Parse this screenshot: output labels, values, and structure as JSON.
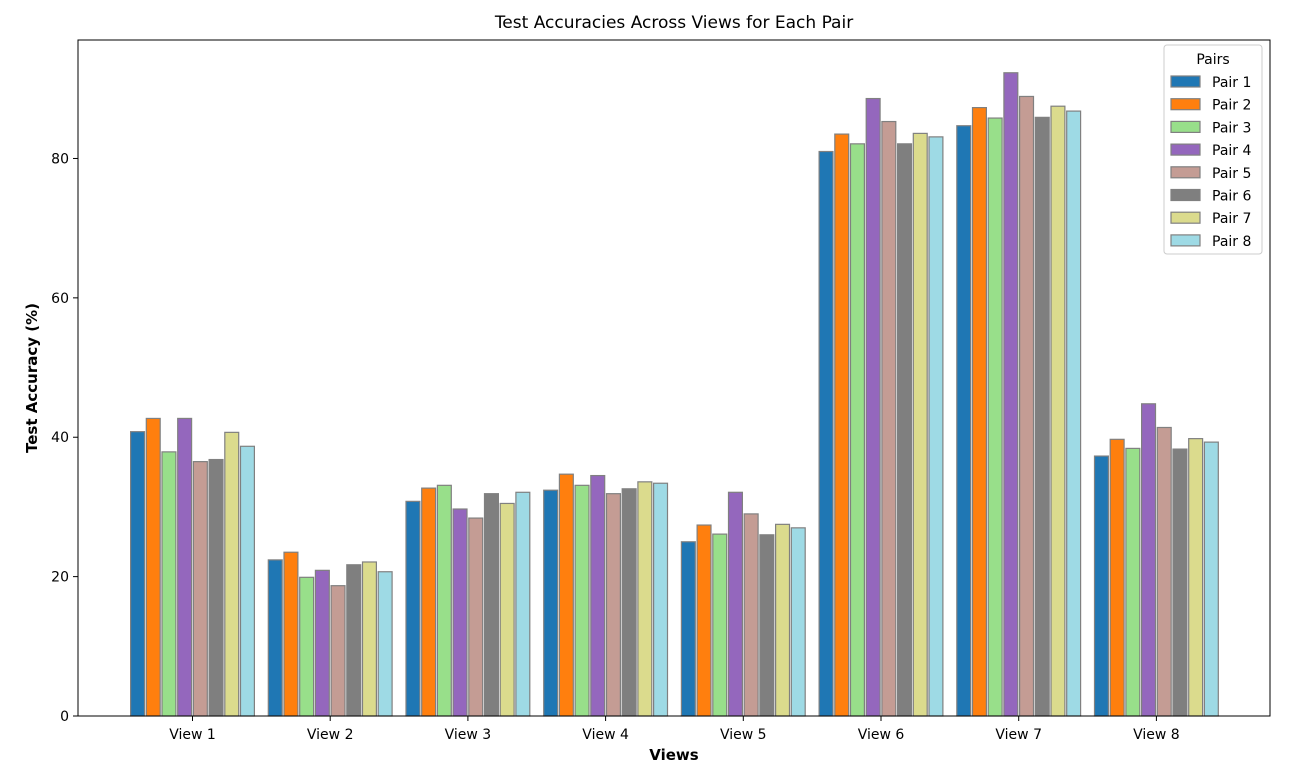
{
  "chart_data": {
    "type": "bar",
    "title": "Test Accuracies Across Views for Each Pair",
    "xlabel": "Views",
    "ylabel": "Test Accuracy (%)",
    "ylim": [
      0,
      97
    ],
    "yticks": [
      0,
      20,
      40,
      60,
      80
    ],
    "grid": false,
    "legend": {
      "title": "Pairs",
      "placement": "top-right"
    },
    "categories": [
      "View 1",
      "View 2",
      "View 3",
      "View 4",
      "View 5",
      "View 6",
      "View 7",
      "View 8"
    ],
    "series": [
      {
        "name": "Pair 1",
        "color": "#1f77b4",
        "values": [
          40.8,
          22.4,
          30.8,
          32.4,
          25.0,
          81.0,
          84.7,
          37.3
        ]
      },
      {
        "name": "Pair 2",
        "color": "#ff7f0e",
        "values": [
          42.7,
          23.5,
          32.7,
          34.7,
          27.4,
          83.5,
          87.3,
          39.7
        ]
      },
      {
        "name": "Pair 3",
        "color": "#98df8a",
        "values": [
          37.9,
          19.9,
          33.1,
          33.1,
          26.1,
          82.1,
          85.8,
          38.4
        ]
      },
      {
        "name": "Pair 4",
        "color": "#9467bd",
        "values": [
          42.7,
          20.9,
          29.7,
          34.5,
          32.1,
          88.6,
          92.3,
          44.8
        ]
      },
      {
        "name": "Pair 5",
        "color": "#c49c94",
        "values": [
          36.5,
          18.7,
          28.4,
          31.9,
          29.0,
          85.3,
          88.9,
          41.4
        ]
      },
      {
        "name": "Pair 6",
        "color": "#7f7f7f",
        "values": [
          36.8,
          21.7,
          31.9,
          32.6,
          26.0,
          82.1,
          85.9,
          38.3
        ]
      },
      {
        "name": "Pair 7",
        "color": "#dbdb8d",
        "values": [
          40.7,
          22.1,
          30.5,
          33.6,
          27.5,
          83.6,
          87.5,
          39.8
        ]
      },
      {
        "name": "Pair 8",
        "color": "#9edae5",
        "values": [
          38.7,
          20.7,
          32.1,
          33.4,
          27.0,
          83.1,
          86.8,
          39.3
        ]
      }
    ]
  }
}
